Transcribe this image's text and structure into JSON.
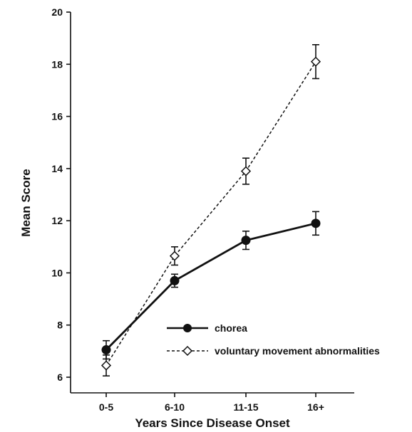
{
  "chart_data": {
    "type": "line",
    "title": "",
    "xlabel": "Years Since Disease Onset",
    "ylabel": "Mean Score",
    "categories": [
      "0-5",
      "6-10",
      "11-15",
      "16+"
    ],
    "ylim": [
      5.4,
      20
    ],
    "yticks": [
      6,
      8,
      10,
      12,
      14,
      16,
      18,
      20
    ],
    "grid": false,
    "legend_position": "lower-right",
    "series": [
      {
        "name": "chorea",
        "values": [
          7.05,
          9.7,
          11.25,
          11.9
        ],
        "error": [
          0.35,
          0.25,
          0.35,
          0.45
        ],
        "marker": "filled-circle",
        "line_style": "solid",
        "color": "#111111"
      },
      {
        "name": "voluntary movement abnormalities",
        "values": [
          6.45,
          10.65,
          13.9,
          18.1
        ],
        "error": [
          0.4,
          0.35,
          0.5,
          0.65
        ],
        "marker": "open-diamond",
        "line_style": "dashed",
        "color": "#111111"
      }
    ]
  }
}
